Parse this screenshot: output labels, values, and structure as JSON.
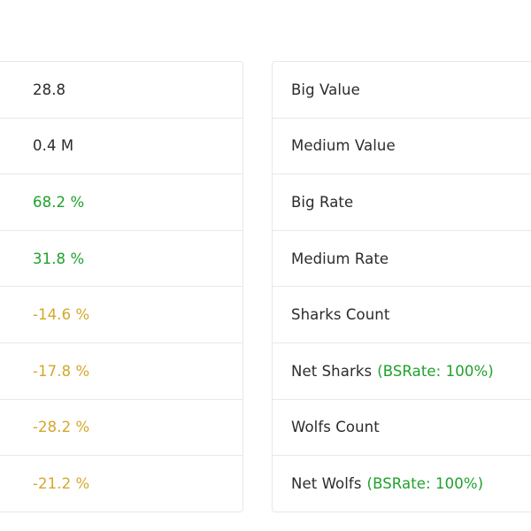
{
  "colors": {
    "neutral": "#2b2b2b",
    "positive": "#1fa12b",
    "warning": "#d4a72b",
    "border": "#e6e8eb"
  },
  "left_values": [
    {
      "text": "28.8",
      "tone": "neutral"
    },
    {
      "text": "0.4 M",
      "tone": "neutral"
    },
    {
      "text": "68.2 %",
      "tone": "positive"
    },
    {
      "text": "31.8 %",
      "tone": "positive"
    },
    {
      "text": "-14.6 %",
      "tone": "warning"
    },
    {
      "text": "-17.8 %",
      "tone": "warning"
    },
    {
      "text": "-28.2 %",
      "tone": "warning"
    },
    {
      "text": "-21.2 %",
      "tone": "warning"
    }
  ],
  "right_labels": [
    {
      "label": "Big Value",
      "note": ""
    },
    {
      "label": "Medium Value",
      "note": ""
    },
    {
      "label": "Big Rate",
      "note": ""
    },
    {
      "label": "Medium Rate",
      "note": ""
    },
    {
      "label": "Sharks Count",
      "note": ""
    },
    {
      "label": "Net Sharks",
      "note": "(BSRate: 100%)"
    },
    {
      "label": "Wolfs Count",
      "note": ""
    },
    {
      "label": "Net Wolfs",
      "note": "(BSRate: 100%)"
    }
  ]
}
